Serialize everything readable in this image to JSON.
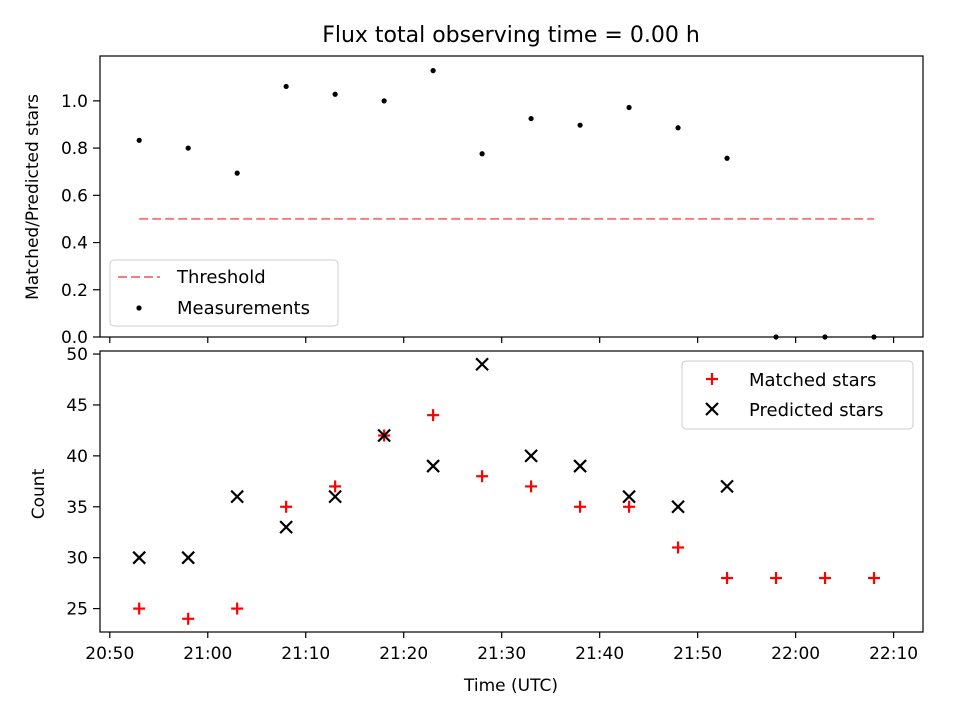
{
  "figure": {
    "title": "Flux total observing time = 0.00 h",
    "xlabel": "Time (UTC)"
  },
  "chart_data": [
    {
      "type": "scatter",
      "panel": "top",
      "ylabel": "Matched/Predicted stars",
      "xlim": [
        "20:49",
        "22:13"
      ],
      "ylim": [
        0,
        1.19
      ],
      "yticks": [
        "0.0",
        "0.2",
        "0.4",
        "0.6",
        "0.8",
        "1.0"
      ],
      "ytick_values": [
        0,
        0.2,
        0.4,
        0.6,
        0.8,
        1.0
      ],
      "grid": false,
      "legend_position": "lower-left",
      "series": [
        {
          "name": "Threshold",
          "kind": "dashed-line",
          "color": "#f08080",
          "x": [
            "20:53",
            "22:08"
          ],
          "y": [
            0.5,
            0.5
          ]
        },
        {
          "name": "Measurements",
          "kind": "dot",
          "color": "#000000",
          "x": [
            "20:53",
            "20:58",
            "21:03",
            "21:08",
            "21:13",
            "21:18",
            "21:23",
            "21:28",
            "21:33",
            "21:38",
            "21:43",
            "21:48",
            "21:53",
            "21:58",
            "22:03",
            "22:08"
          ],
          "y": [
            0.833,
            0.8,
            0.694,
            1.061,
            1.028,
            1.0,
            1.128,
            0.776,
            0.925,
            0.897,
            0.972,
            0.886,
            0.757,
            0.0,
            0.0,
            0.0
          ]
        }
      ]
    },
    {
      "type": "scatter",
      "panel": "bottom",
      "ylabel": "Count",
      "xlabel": "Time (UTC)",
      "xlim": [
        "20:49",
        "22:13"
      ],
      "ylim": [
        22.7,
        50.3
      ],
      "yticks": [
        "25",
        "30",
        "35",
        "40",
        "45",
        "50"
      ],
      "ytick_values": [
        25,
        30,
        35,
        40,
        45,
        50
      ],
      "xticks": [
        "20:50",
        "21:00",
        "21:10",
        "21:20",
        "21:30",
        "21:40",
        "21:50",
        "22:00",
        "22:10"
      ],
      "grid": false,
      "legend_position": "upper-right",
      "series": [
        {
          "name": "Matched stars",
          "marker": "plus",
          "color": "#ff0000",
          "x": [
            "20:53",
            "20:58",
            "21:03",
            "21:08",
            "21:13",
            "21:18",
            "21:23",
            "21:28",
            "21:33",
            "21:38",
            "21:43",
            "21:48",
            "21:53",
            "21:58",
            "22:03",
            "22:08"
          ],
          "y": [
            25,
            24,
            25,
            35,
            37,
            42,
            44,
            38,
            37,
            35,
            35,
            31,
            28,
            28,
            28,
            28
          ]
        },
        {
          "name": "Predicted stars",
          "marker": "x",
          "color": "#000000",
          "x": [
            "20:53",
            "20:58",
            "21:03",
            "21:08",
            "21:13",
            "21:18",
            "21:23",
            "21:28",
            "21:33",
            "21:38",
            "21:43",
            "21:48",
            "21:53"
          ],
          "y": [
            30,
            30,
            36,
            33,
            36,
            42,
            39,
            49,
            40,
            39,
            36,
            35,
            37
          ]
        }
      ]
    }
  ]
}
